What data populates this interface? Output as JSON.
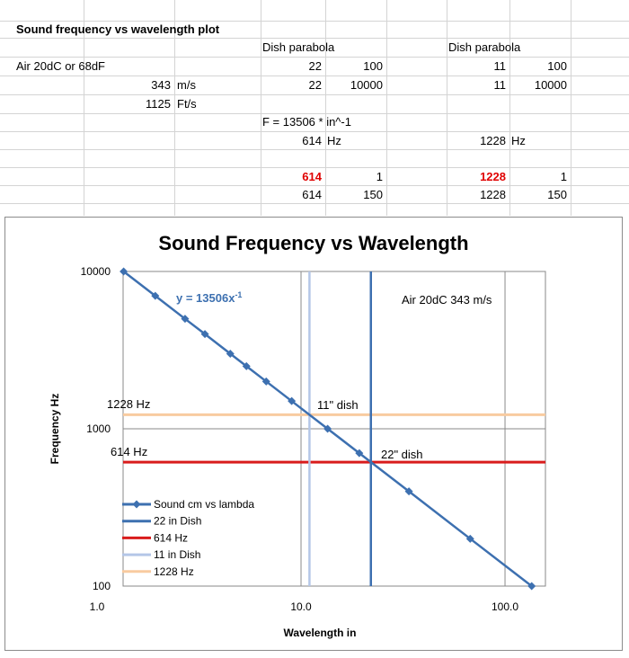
{
  "sheet": {
    "title": "Sound frequency vs wavelength plot",
    "dish_header_1": "Dish parabola",
    "dish_header_2": "Dish parabola",
    "air_label": "Air 20dC or 68dF",
    "speed_ms_value": "343",
    "speed_ms_unit": "m/s",
    "speed_fts_value": "1125",
    "speed_fts_unit": "Ft/s",
    "r2_a": "22",
    "r2_b": "100",
    "r2_c": "11",
    "r2_d": "100",
    "r3_a": "22",
    "r3_b": "10000",
    "r3_c": "11",
    "r3_d": "10000",
    "formula": "F = 13506 * in^-1",
    "freq1_value": "614",
    "freq1_unit": "Hz",
    "freq2_value": "1228",
    "freq2_unit": "Hz",
    "r7_a": "614",
    "r7_b": "1",
    "r7_c": "1228",
    "r7_d": "1",
    "r8_a": "614",
    "r8_b": "150",
    "r8_c": "1228",
    "r8_d": "150"
  },
  "chart_data": {
    "type": "scatter",
    "title": "Sound Frequency vs Wavelength",
    "xlabel": "Wavelength in",
    "ylabel": "Frequency Hz",
    "x_scale": "log",
    "y_scale": "log",
    "xlim": [
      1,
      200
    ],
    "ylim": [
      100,
      10000
    ],
    "x_ticks": [
      "1.0",
      "10.0",
      "100.0"
    ],
    "y_ticks": [
      "100",
      "1000",
      "10000"
    ],
    "grid": true,
    "legend_position": "bottom-left",
    "trendline_label": "y = 13506x",
    "trendline_exponent": "-1",
    "annotation_air": "Air 20dC 343 m/s",
    "label_1228": "1228 Hz",
    "label_614": "614 Hz",
    "label_11dish": "11\" dish",
    "label_22dish": "22\" dish",
    "series": [
      {
        "name": "Sound cm vs lambda",
        "color": "#3d70b0",
        "kind": "line-markers",
        "x": [
          1.35,
          1.93,
          2.7,
          3.38,
          4.5,
          5.4,
          6.75,
          9.0,
          13.5,
          19.3,
          33.8,
          67.5,
          135.1
        ],
        "y": [
          10000,
          7000,
          5000,
          4000,
          3000,
          2500,
          2000,
          1500,
          1000,
          700,
          400,
          200,
          100
        ]
      },
      {
        "name": "22 in Dish",
        "color": "#3d70b0",
        "kind": "vline",
        "x": [
          22,
          22
        ],
        "y": [
          100,
          10000
        ]
      },
      {
        "name": "614 Hz",
        "color": "#d91c1c",
        "kind": "hline",
        "x": [
          1,
          150
        ],
        "y": [
          614,
          614
        ]
      },
      {
        "name": "11 in Dish",
        "color": "#b4c6e7",
        "kind": "vline",
        "x": [
          11,
          11
        ],
        "y": [
          100,
          10000
        ]
      },
      {
        "name": "1228 Hz",
        "color": "#f8cba0",
        "kind": "hline",
        "x": [
          1,
          150
        ],
        "y": [
          1228,
          1228
        ]
      }
    ]
  }
}
